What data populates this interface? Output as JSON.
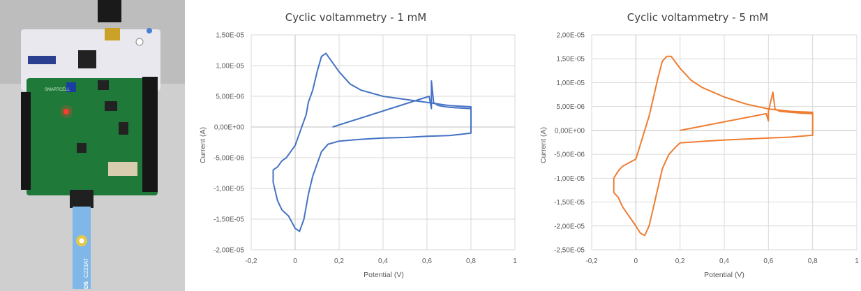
{
  "photo": {
    "board_label": "SMARTCELL",
    "strip_label": "C223AT",
    "strip_logo": "DS"
  },
  "chart_data": [
    {
      "type": "scatter",
      "title": "Cyclic voltammetry - 1 mM",
      "xlabel": "Potential (V)",
      "ylabel": "Current (A)",
      "xlim": [
        -0.2,
        1
      ],
      "ylim": [
        -2e-05,
        1.5e-05
      ],
      "x_ticks": [
        -0.2,
        0,
        0.2,
        0.4,
        0.6,
        0.8,
        1
      ],
      "x_tick_labels": [
        "-0,2",
        "0",
        "0,2",
        "0,4",
        "0,6",
        "0,8",
        "1"
      ],
      "y_ticks": [
        1.5e-05,
        1e-05,
        5e-06,
        0,
        -5e-06,
        -1e-05,
        -1.5e-05,
        -2e-05
      ],
      "y_tick_labels": [
        "1,50E-05",
        "1,00E-05",
        "5,00E-06",
        "0,00E+00",
        "-5,00E-06",
        "-1,00E-05",
        "-1,50E-05",
        "-2,00E-05"
      ],
      "grid": true,
      "color": "#4472C4",
      "series": [
        {
          "x": [
            0.17,
            0.61,
            0.62,
            0.62,
            0.63,
            0.65,
            0.7,
            0.75,
            0.8,
            0.8,
            0.8,
            0.75,
            0.7,
            0.6,
            0.5,
            0.4,
            0.3,
            0.2,
            0.15,
            0.12,
            0.1,
            0.08,
            0.06,
            0.04,
            0.02,
            0.0,
            -0.03,
            -0.06,
            -0.08,
            -0.1,
            -0.1,
            -0.08,
            -0.06,
            -0.04,
            -0.02,
            0.0,
            0.02,
            0.04,
            0.05,
            0.06,
            0.08,
            0.1,
            0.12,
            0.14,
            0.16,
            0.2,
            0.25,
            0.3,
            0.4,
            0.5,
            0.6,
            0.7,
            0.8,
            0.8
          ],
          "y": [
            0.0,
            5e-06,
            3e-06,
            7.5e-06,
            4e-06,
            3.5e-06,
            3.2e-06,
            3.1e-06,
            3e-06,
            5e-07,
            -1e-06,
            -1.2e-06,
            -1.4e-06,
            -1.5e-06,
            -1.7e-06,
            -1.8e-06,
            -2e-06,
            -2.3e-06,
            -2.8e-06,
            -4e-06,
            -6e-06,
            -8e-06,
            -1.1e-05,
            -1.5e-05,
            -1.7e-05,
            -1.65e-05,
            -1.45e-05,
            -1.35e-05,
            -1.2e-05,
            -9e-06,
            -7e-06,
            -6.5e-06,
            -5.5e-06,
            -5e-06,
            -4e-06,
            -3e-06,
            -1e-06,
            1e-06,
            2e-06,
            4e-06,
            6e-06,
            9e-06,
            1.15e-05,
            1.2e-05,
            1.1e-05,
            9e-06,
            7e-06,
            6e-06,
            5e-06,
            4.5e-06,
            4e-06,
            3.5e-06,
            3.3e-06,
            3e-06
          ]
        }
      ]
    },
    {
      "type": "scatter",
      "title": "Cyclic voltammetry - 5 mM",
      "xlabel": "Potential (V)",
      "ylabel": "Current (A)",
      "xlim": [
        -0.2,
        1
      ],
      "ylim": [
        -2.5e-05,
        2e-05
      ],
      "x_ticks": [
        -0.2,
        0,
        0.2,
        0.4,
        0.6,
        0.8,
        1
      ],
      "x_tick_labels": [
        "-0,2",
        "0",
        "0,2",
        "0,4",
        "0,6",
        "0,8",
        "1"
      ],
      "y_ticks": [
        2e-05,
        1.5e-05,
        1e-05,
        5e-06,
        0,
        -5e-06,
        -1e-05,
        -1.5e-05,
        -2e-05,
        -2.5e-05
      ],
      "y_tick_labels": [
        "2,00E-05",
        "1,50E-05",
        "1,00E-05",
        "5,00E-06",
        "0,00E+00",
        "-5,00E-06",
        "-1,00E-05",
        "-1,50E-05",
        "-2,00E-05",
        "-2,50E-05"
      ],
      "grid": true,
      "color": "#ED7D31",
      "series": [
        {
          "x": [
            0.2,
            0.59,
            0.6,
            0.6,
            0.62,
            0.63,
            0.65,
            0.7,
            0.75,
            0.8,
            0.8,
            0.8,
            0.75,
            0.7,
            0.6,
            0.5,
            0.4,
            0.3,
            0.2,
            0.18,
            0.15,
            0.12,
            0.1,
            0.08,
            0.06,
            0.04,
            0.02,
            0.0,
            -0.03,
            -0.06,
            -0.08,
            -0.1,
            -0.1,
            -0.08,
            -0.06,
            -0.04,
            -0.02,
            0.0,
            0.02,
            0.04,
            0.06,
            0.08,
            0.1,
            0.12,
            0.14,
            0.16,
            0.2,
            0.25,
            0.3,
            0.4,
            0.5,
            0.6,
            0.7,
            0.8,
            0.8
          ],
          "y": [
            0.0,
            3.5e-06,
            2e-06,
            4e-06,
            8e-06,
            4.5e-06,
            4e-06,
            3.8e-06,
            3.6e-06,
            3.5e-06,
            5e-07,
            -1e-06,
            -1.2e-06,
            -1.4e-06,
            -1.6e-06,
            -1.8e-06,
            -2e-06,
            -2.3e-06,
            -2.6e-06,
            -3.5e-06,
            -5e-06,
            -8e-06,
            -1.2e-05,
            -1.6e-05,
            -2e-05,
            -2.2e-05,
            -2.15e-05,
            -2e-05,
            -1.8e-05,
            -1.6e-05,
            -1.4e-05,
            -1.3e-05,
            -1e-05,
            -8.5e-06,
            -7.5e-06,
            -7e-06,
            -6.5e-06,
            -6e-06,
            -3e-06,
            0.0,
            3e-06,
            7e-06,
            1.1e-05,
            1.45e-05,
            1.55e-05,
            1.55e-05,
            1.3e-05,
            1.05e-05,
            9e-06,
            7e-06,
            5.5e-06,
            4.5e-06,
            4e-06,
            3.8e-06,
            3.5e-06
          ]
        }
      ]
    }
  ]
}
